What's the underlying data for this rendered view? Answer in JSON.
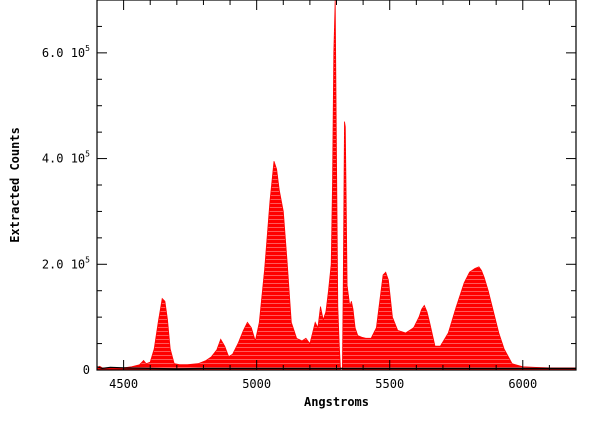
{
  "chart_data": {
    "type": "area",
    "xlabel": "Angstroms",
    "ylabel": "Extracted Counts",
    "xlim": [
      4400,
      6200
    ],
    "ylim": [
      0,
      700000
    ],
    "fill_color": "#ff0000",
    "hatch_color": "#ffffff",
    "grid": false,
    "x_ticks": [
      {
        "value": 4500,
        "label": "4500"
      },
      {
        "value": 5000,
        "label": "5000"
      },
      {
        "value": 5500,
        "label": "5500"
      },
      {
        "value": 6000,
        "label": "6000"
      }
    ],
    "y_ticks": [
      {
        "value": 0,
        "mantissa": "0",
        "base": "",
        "exp": ""
      },
      {
        "value": 200000,
        "mantissa": "2.0",
        "base": "10",
        "exp": "5"
      },
      {
        "value": 400000,
        "mantissa": "4.0",
        "base": "10",
        "exp": "5"
      },
      {
        "value": 600000,
        "mantissa": "6.0",
        "base": "10",
        "exp": "5"
      }
    ],
    "series": [
      {
        "x": [
          4400,
          4410,
          4420,
          4440,
          4470,
          4500,
          4530,
          4560,
          4575,
          4585,
          4600,
          4615,
          4630,
          4645,
          4655,
          4665,
          4675,
          4690,
          4710,
          4740,
          4780,
          4810,
          4830,
          4850,
          4865,
          4880,
          4895,
          4910,
          4930,
          4950,
          4965,
          4980,
          4995,
          5010,
          5030,
          5050,
          5065,
          5075,
          5085,
          5100,
          5115,
          5130,
          5150,
          5170,
          5185,
          5200,
          5210,
          5220,
          5230,
          5240,
          5250,
          5260,
          5270,
          5280,
          5285,
          5290,
          5295,
          5300,
          5305,
          5310,
          5315,
          5322,
          5325,
          5330,
          5333,
          5337,
          5340,
          5345,
          5350,
          5356,
          5362,
          5370,
          5380,
          5395,
          5410,
          5430,
          5450,
          5465,
          5475,
          5485,
          5495,
          5510,
          5530,
          5560,
          5590,
          5610,
          5620,
          5630,
          5640,
          5650,
          5670,
          5690,
          5720,
          5750,
          5780,
          5800,
          5820,
          5835,
          5845,
          5855,
          5870,
          5890,
          5910,
          5930,
          5960,
          6000,
          6050,
          6100,
          6150,
          6200
        ],
        "y": [
          5000,
          7000,
          4000,
          3000,
          3000,
          4000,
          6000,
          10000,
          18000,
          12000,
          15000,
          40000,
          90000,
          135000,
          130000,
          95000,
          40000,
          12000,
          10000,
          10000,
          12000,
          18000,
          25000,
          38000,
          58000,
          45000,
          25000,
          30000,
          50000,
          75000,
          90000,
          80000,
          55000,
          90000,
          190000,
          320000,
          395000,
          380000,
          340000,
          300000,
          200000,
          90000,
          60000,
          55000,
          60000,
          50000,
          70000,
          90000,
          80000,
          120000,
          95000,
          110000,
          150000,
          200000,
          350000,
          600000,
          700000,
          400000,
          120000,
          50000,
          0,
          0,
          150000,
          470000,
          460000,
          300000,
          160000,
          140000,
          120000,
          130000,
          115000,
          80000,
          65000,
          62000,
          60000,
          60000,
          80000,
          140000,
          180000,
          185000,
          170000,
          100000,
          75000,
          70000,
          80000,
          100000,
          115000,
          122000,
          110000,
          90000,
          45000,
          45000,
          70000,
          120000,
          165000,
          185000,
          192000,
          195000,
          188000,
          175000,
          150000,
          110000,
          70000,
          40000,
          12000,
          6000,
          5000,
          4000,
          4000,
          4000
        ]
      },
      {
        "x": [
          4400,
          4420,
          4450,
          4500,
          4600,
          4700,
          4800,
          4900,
          5000,
          5100,
          5200,
          5300,
          5400,
          5500,
          5600,
          5700,
          5800,
          5900,
          6000,
          6100,
          6200
        ],
        "y": [
          6000,
          3000,
          5000,
          4000,
          3000,
          2000,
          3000,
          3000,
          3000,
          3000,
          3000,
          3000,
          3000,
          3000,
          3000,
          3000,
          3000,
          3000,
          3000,
          3000,
          3000
        ]
      }
    ]
  }
}
